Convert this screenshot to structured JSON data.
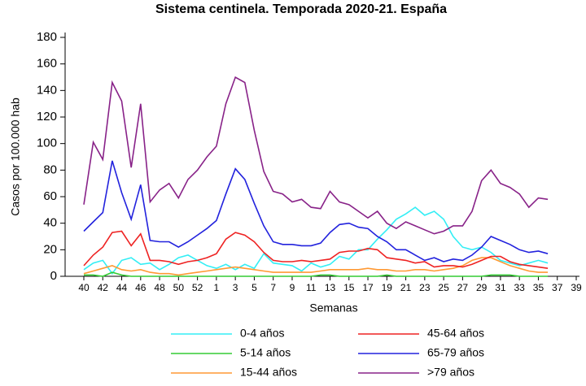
{
  "chart_data": {
    "type": "line",
    "title": "Sistema centinela. Temporada 2020-21. España",
    "x_label": "Semanas",
    "y_label": "Casos por 100.000 hab",
    "categories": [
      "40",
      null,
      "42",
      null,
      "44",
      null,
      "46",
      null,
      "48",
      null,
      "50",
      null,
      "52",
      null,
      "1",
      null,
      "3",
      null,
      "5",
      null,
      "7",
      null,
      "9",
      null,
      "11",
      null,
      "13",
      null,
      "15",
      null,
      "17",
      null,
      "19",
      null,
      "21",
      null,
      "23",
      null,
      "25",
      null,
      "27",
      null,
      "29",
      null,
      "31",
      null,
      "33",
      null,
      "35",
      null,
      "37",
      null,
      "39"
    ],
    "ylim": [
      0,
      180
    ],
    "yticks": [
      0,
      20,
      40,
      60,
      80,
      100,
      120,
      140,
      160,
      180
    ],
    "series": [
      {
        "name": "0-4 años",
        "color": "#33eef5",
        "values": [
          5,
          10,
          12,
          2,
          12,
          14,
          9,
          10,
          5,
          9,
          14,
          16,
          12,
          8,
          6,
          9,
          5,
          9,
          6,
          17,
          10,
          9,
          8,
          4,
          10,
          7,
          9,
          15,
          13,
          20,
          20,
          28,
          35,
          43,
          47,
          52,
          46,
          49,
          43,
          30,
          22,
          20,
          22,
          18,
          12,
          10,
          8,
          10,
          12,
          10,
          null,
          null,
          null
        ]
      },
      {
        "name": "5-14 años",
        "color": "#33cc33",
        "values": [
          1,
          1,
          0,
          3,
          1,
          0,
          0,
          0,
          0,
          0,
          0,
          0,
          0,
          0,
          0,
          0,
          0,
          0,
          0,
          0,
          0,
          0,
          0,
          0,
          0,
          1,
          1,
          0,
          0,
          0,
          0,
          0,
          1,
          0,
          0,
          0,
          0,
          0,
          0,
          0,
          0,
          0,
          0,
          1,
          1,
          1,
          0,
          0,
          0,
          0,
          null,
          null,
          null
        ]
      },
      {
        "name": "15-44 años",
        "color": "#ff9933",
        "values": [
          2,
          4,
          6,
          8,
          5,
          4,
          5,
          3,
          2,
          2,
          1,
          2,
          3,
          4,
          5,
          6,
          7,
          6,
          5,
          4,
          3,
          3,
          3,
          3,
          3,
          4,
          5,
          5,
          5,
          5,
          6,
          5,
          5,
          4,
          4,
          5,
          5,
          4,
          5,
          6,
          8,
          12,
          14,
          14,
          11,
          8,
          6,
          4,
          3,
          3,
          null,
          null,
          null
        ]
      },
      {
        "name": "45-64 años",
        "color": "#ee2222",
        "values": [
          8,
          16,
          22,
          33,
          34,
          23,
          32,
          12,
          12,
          11,
          9,
          11,
          12,
          14,
          17,
          28,
          33,
          31,
          26,
          18,
          12,
          11,
          11,
          12,
          11,
          12,
          13,
          18,
          19,
          19,
          21,
          20,
          14,
          13,
          12,
          10,
          11,
          7,
          8,
          8,
          7,
          9,
          12,
          15,
          15,
          11,
          9,
          8,
          7,
          6,
          null,
          null,
          null
        ]
      },
      {
        "name": "65-79 años",
        "color": "#2222dd",
        "values": [
          34,
          41,
          48,
          87,
          63,
          43,
          69,
          27,
          26,
          26,
          22,
          26,
          31,
          36,
          42,
          62,
          81,
          73,
          55,
          38,
          26,
          24,
          24,
          23,
          23,
          25,
          33,
          39,
          40,
          37,
          36,
          30,
          26,
          20,
          20,
          16,
          12,
          14,
          11,
          13,
          12,
          16,
          22,
          30,
          27,
          24,
          20,
          18,
          19,
          17,
          null,
          null,
          null
        ]
      },
      {
        "name": ">79 años",
        "color": "#882288",
        "values": [
          54,
          101,
          88,
          146,
          132,
          82,
          130,
          56,
          65,
          70,
          59,
          73,
          80,
          90,
          98,
          130,
          150,
          146,
          110,
          79,
          64,
          62,
          56,
          58,
          52,
          51,
          64,
          56,
          54,
          49,
          44,
          49,
          40,
          36,
          41,
          38,
          35,
          32,
          34,
          38,
          38,
          49,
          72,
          80,
          70,
          67,
          62,
          52,
          59,
          58,
          null,
          null,
          null
        ]
      }
    ]
  }
}
